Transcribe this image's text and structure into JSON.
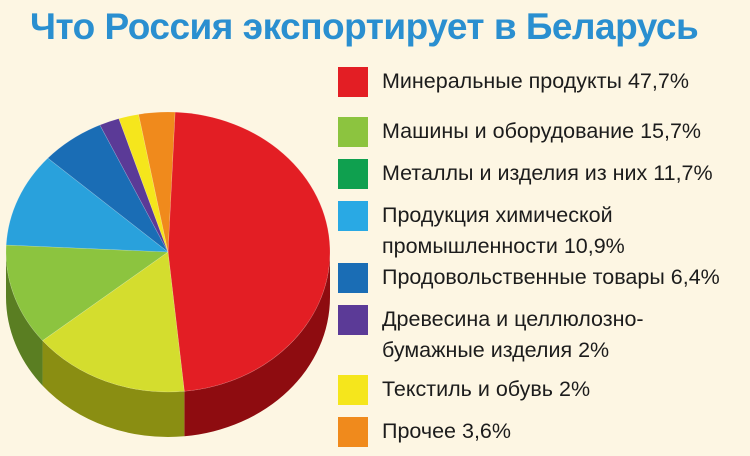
{
  "title": "Что Россия экспортирует в Беларусь",
  "colors": {
    "background": "#fdf6e3",
    "title": "#2a8fd0"
  },
  "chart_data": {
    "type": "pie",
    "title": "Что Россия экспортирует в Беларусь",
    "unit": "%",
    "slices": [
      {
        "label": "Минеральные продукты 47,7%",
        "value": 47.7,
        "color": "#e31e24",
        "side_color": "#8e0c10"
      },
      {
        "label": "Машины и оборудование 15,7%",
        "value": 15.7,
        "color": "#d4dd2e",
        "side_color": "#8a8e12"
      },
      {
        "label": "Металлы и изделия из них 11,7%",
        "value": 11.7,
        "color": "#8cc43f",
        "side_color": "#5a7e22"
      },
      {
        "label": "Продукция химической промышленности 10,9%",
        "value": 10.9,
        "color": "#29a1dc",
        "side_color": "#17658c"
      },
      {
        "label": "Продовольственные товары 6,4%",
        "value": 6.4,
        "color": "#1a6db5",
        "side_color": "#0f4270"
      },
      {
        "label": "Древесина и целлюлозно-бумажные изделия 2%",
        "value": 2.0,
        "color": "#5b3a97",
        "side_color": "#36205e"
      },
      {
        "label": "Текстиль и обувь 2%",
        "value": 2.0,
        "color": "#f5e61c",
        "side_color": "#a89a0c"
      },
      {
        "label": "Прочее 3,6%",
        "value": 3.6,
        "color": "#f08a1c",
        "side_color": "#9c5408"
      }
    ]
  },
  "legend": [
    {
      "lines": [
        "Минеральные продукты 47,7%"
      ],
      "color": "#e31e24"
    },
    {
      "lines": [
        "Машины и оборудование 15,7%"
      ],
      "color": "#8cc43f"
    },
    {
      "lines": [
        "Металлы и изделия из них 11,7%"
      ],
      "color": "#0fa04f"
    },
    {
      "lines": [
        "Продукция химической",
        "промышленности 10,9%"
      ],
      "color": "#29a9e4"
    },
    {
      "lines": [
        "Продовольственные товары 6,4%"
      ],
      "color": "#1a6db5"
    },
    {
      "lines": [
        "Древесина и целлюлозно-",
        "бумажные изделия  2%"
      ],
      "color": "#5b3a97"
    },
    {
      "lines": [
        "Текстиль и обувь 2%"
      ],
      "color": "#f5e61c"
    },
    {
      "lines": [
        "Прочее 3,6%"
      ],
      "color": "#f08a1c"
    }
  ]
}
